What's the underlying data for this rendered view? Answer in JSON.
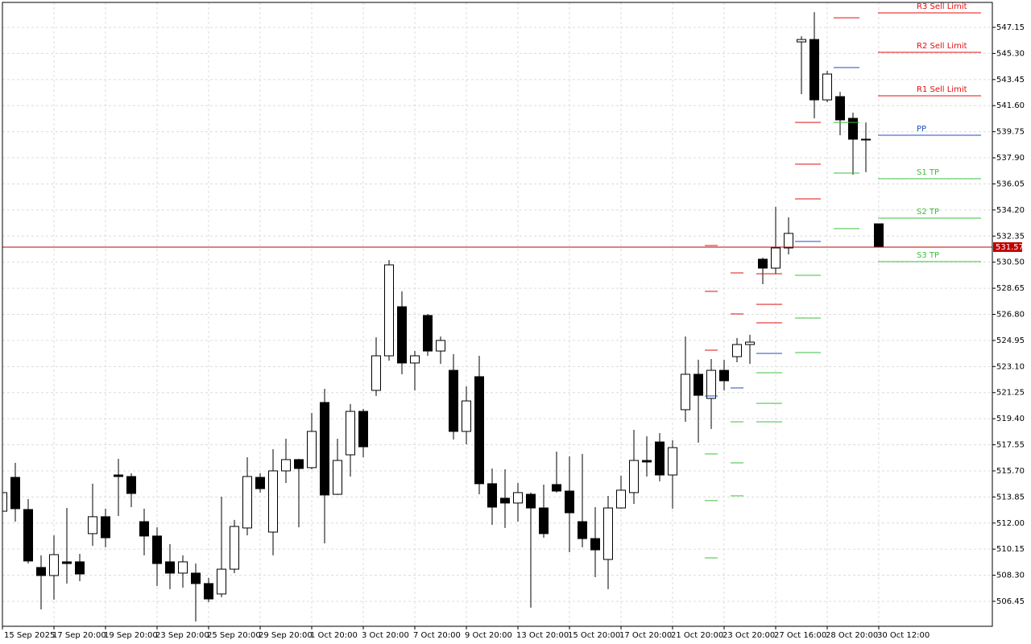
{
  "chart_data": {
    "type": "candlestick",
    "categories": [
      "15 Sep 2025",
      null,
      null,
      null,
      "17 Sep 20:00",
      null,
      null,
      null,
      "19 Sep 20:00",
      null,
      null,
      null,
      "23 Sep 20:00",
      null,
      null,
      null,
      "25 Sep 20:00",
      null,
      null,
      null,
      "29 Sep 20:00",
      null,
      null,
      null,
      "1 Oct 20:00",
      null,
      null,
      null,
      "3 Oct 20:00",
      null,
      null,
      null,
      "7 Oct 20:00",
      null,
      null,
      null,
      "9 Oct 20:00",
      null,
      null,
      null,
      "13 Oct 20:00",
      null,
      null,
      null,
      "15 Oct 20:00",
      null,
      null,
      null,
      "17 Oct 20:00",
      null,
      null,
      null,
      "21 Oct 20:00",
      null,
      null,
      null,
      "23 Oct 20:00",
      null,
      null,
      null,
      "27 Oct 16:00",
      null,
      null,
      null,
      "28 Oct 20:00",
      null,
      null,
      null,
      "30 Oct 12:00"
    ],
    "open": [
      512.84,
      515.24,
      512.96,
      508.85,
      508.28,
      509.25,
      509.25,
      511.25,
      512.45,
      515.41,
      515.3,
      512.1,
      511.08,
      509.25,
      508.45,
      508.45,
      507.71,
      506.97,
      508.73,
      511.65,
      515.24,
      511.36,
      515.7,
      516.5,
      515.93,
      520.55,
      514.04,
      516.84,
      519.92,
      521.41,
      523.86,
      527.34,
      523.35,
      526.72,
      524.2,
      522.83,
      518.5,
      522.38,
      514.79,
      513.76,
      513.42,
      514.04,
      513.07,
      514.73,
      514.27,
      512.1,
      510.9,
      509.42,
      513.07,
      514.16,
      516.44,
      517.75,
      515.41,
      520.04,
      522.55,
      520.84,
      522.83,
      523.8,
      524.66,
      530.71,
      530.08,
      531.51,
      546.12,
      546.29,
      542.01,
      542.24,
      540.7,
      539.22,
      533.22
    ],
    "high": [
      514.56,
      516.27,
      513.7,
      509.71,
      511.13,
      513.07,
      509.82,
      514.79,
      513.02,
      516.55,
      515.53,
      513.02,
      511.7,
      510.5,
      509.71,
      509.13,
      508.11,
      513.87,
      512.22,
      516.67,
      515.53,
      517.24,
      517.98,
      516.55,
      519.81,
      521.52,
      517.98,
      520.44,
      520.09,
      525.17,
      530.65,
      528.43,
      524.2,
      526.83,
      525.23,
      523.98,
      521.69,
      523.86,
      515.87,
      515.81,
      514.84,
      514.16,
      514.73,
      517.07,
      516.73,
      516.9,
      513.13,
      513.93,
      515.36,
      518.61,
      518.15,
      518.38,
      517.87,
      525.23,
      523.58,
      523.63,
      523.58,
      525.12,
      525.35,
      530.82,
      534.42,
      533.68,
      546.52,
      548.23,
      544.07,
      542.58,
      541.1,
      540.41,
      533.22
    ],
    "low": [
      512.56,
      512.1,
      509.13,
      505.88,
      506.57,
      507.71,
      507.88,
      510.39,
      510.28,
      512.5,
      513.13,
      509.71,
      507.54,
      507.31,
      507.42,
      505.02,
      506.39,
      506.74,
      508.45,
      511.13,
      514.16,
      509.71,
      514.84,
      511.7,
      515.81,
      510.56,
      513.99,
      515.3,
      516.67,
      521.01,
      523.52,
      522.55,
      521.41,
      523.86,
      523.29,
      517.92,
      517.58,
      514.04,
      511.87,
      511.65,
      512.1,
      506.0,
      510.96,
      514.16,
      509.93,
      510.28,
      508.16,
      507.31,
      513.02,
      513.36,
      515.3,
      514.96,
      513.02,
      519.18,
      517.7,
      518.67,
      521.41,
      523.4,
      523.29,
      528.94,
      529.68,
      531.05,
      542.41,
      540.7,
      541.84,
      539.5,
      536.7,
      536.88,
      531.57
    ],
    "close": [
      514.16,
      513.02,
      509.31,
      508.28,
      509.76,
      509.13,
      508.39,
      512.45,
      510.96,
      515.3,
      514.1,
      511.08,
      509.13,
      508.45,
      509.25,
      507.71,
      506.62,
      508.73,
      511.76,
      515.3,
      514.44,
      515.7,
      516.5,
      515.87,
      518.5,
      513.99,
      516.44,
      519.92,
      517.41,
      523.86,
      530.31,
      523.35,
      523.86,
      524.2,
      524.95,
      518.5,
      520.66,
      514.79,
      513.13,
      513.42,
      514.16,
      513.07,
      511.25,
      514.27,
      512.73,
      510.9,
      510.1,
      513.07,
      514.33,
      516.44,
      516.33,
      515.41,
      517.35,
      522.55,
      521.06,
      522.83,
      522.09,
      524.66,
      524.83,
      530.08,
      531.51,
      532.54,
      546.29,
      542.01,
      543.84,
      540.59,
      539.22,
      539.22,
      531.57
    ],
    "up_color": "#ffffff",
    "down_color": "#000000",
    "ylim": [
      504.68,
      548.92
    ],
    "yticks": [
      506.45,
      {
        "value": 508.3,
        "label": "508.30"
      },
      510.15,
      {
        "value": 512,
        "label": "512.00"
      },
      513.85,
      {
        "value": 515.7,
        "label": "515.70"
      },
      517.55,
      {
        "value": 519.4,
        "label": "519.40"
      },
      521.25,
      {
        "value": 523.1,
        "label": "523.10"
      },
      524.95,
      {
        "value": 526.8,
        "label": "526.80"
      },
      528.65,
      {
        "value": 530.5,
        "label": "530.50"
      },
      532.35,
      {
        "value": 534.2,
        "label": "534.20"
      },
      536.05,
      {
        "value": 537.9,
        "label": "537.90"
      },
      539.75,
      {
        "value": 541.6,
        "label": "541.60"
      },
      543.45,
      {
        "value": 545.3,
        "label": "545.30"
      },
      547.15
    ],
    "grid": true,
    "current_price": {
      "value": 531.57,
      "color": "#c00000"
    },
    "pivots": [
      {
        "name": "R3 Sell Limit",
        "color": "#e01010",
        "values": [
          null,
          null,
          null,
          null,
          null,
          null,
          null,
          null,
          null,
          null,
          null,
          null,
          null,
          null,
          null,
          null,
          null,
          null,
          null,
          null,
          null,
          null,
          null,
          null,
          null,
          null,
          null,
          null,
          null,
          null,
          null,
          null,
          null,
          null,
          null,
          null,
          null,
          null,
          null,
          null,
          null,
          null,
          null,
          null,
          null,
          null,
          null,
          null,
          null,
          null,
          null,
          null,
          null,
          null,
          null,
          531.68,
          null,
          529.74,
          null,
          529.68,
          529.68,
          null,
          540.41,
          540.41,
          null,
          null,
          null,
          null,
          548.18
        ]
      },
      {
        "name": "R2 Sell Limit",
        "color": "#e01010",
        "values": [
          null,
          null,
          null,
          null,
          null,
          null,
          null,
          null,
          null,
          null,
          null,
          null,
          null,
          null,
          null,
          null,
          null,
          null,
          null,
          null,
          null,
          null,
          null,
          null,
          null,
          null,
          null,
          null,
          null,
          null,
          null,
          null,
          null,
          null,
          null,
          null,
          null,
          null,
          null,
          null,
          null,
          null,
          null,
          null,
          null,
          null,
          null,
          null,
          null,
          null,
          null,
          null,
          null,
          null,
          null,
          528.43,
          null,
          526.83,
          null,
          527.51,
          527.51,
          null,
          537.45,
          537.45,
          null,
          null,
          null,
          null,
          545.38
        ]
      },
      {
        "name": "R1 Sell Limit",
        "color": "#e01010",
        "values": [
          null,
          null,
          null,
          null,
          null,
          null,
          null,
          null,
          null,
          null,
          null,
          null,
          null,
          null,
          null,
          null,
          null,
          null,
          null,
          null,
          null,
          null,
          null,
          null,
          null,
          null,
          null,
          null,
          null,
          null,
          null,
          null,
          null,
          null,
          null,
          null,
          null,
          null,
          null,
          null,
          null,
          null,
          null,
          null,
          null,
          null,
          null,
          null,
          null,
          null,
          null,
          null,
          null,
          null,
          null,
          524.26,
          null,
          null,
          null,
          526.2,
          526.2,
          null,
          534.99,
          534.99,
          null,
          547.83,
          547.83,
          null,
          542.3
        ]
      },
      {
        "name": "PP",
        "color": "#1f4fbf",
        "values": [
          null,
          null,
          null,
          null,
          null,
          null,
          null,
          null,
          null,
          null,
          null,
          null,
          null,
          null,
          null,
          null,
          null,
          null,
          null,
          null,
          null,
          null,
          null,
          null,
          null,
          null,
          null,
          null,
          null,
          null,
          null,
          null,
          null,
          null,
          null,
          null,
          null,
          null,
          null,
          null,
          null,
          null,
          null,
          null,
          null,
          null,
          null,
          null,
          null,
          null,
          null,
          null,
          null,
          null,
          null,
          521.01,
          null,
          521.58,
          null,
          524.03,
          524.03,
          null,
          531.97,
          531.97,
          null,
          544.3,
          544.3,
          null,
          539.5
        ]
      },
      {
        "name": "S1 TP",
        "color": "#3cbf3c",
        "values": [
          null,
          null,
          null,
          null,
          null,
          null,
          null,
          null,
          null,
          null,
          null,
          null,
          null,
          null,
          null,
          null,
          null,
          null,
          null,
          null,
          null,
          null,
          null,
          null,
          null,
          null,
          null,
          null,
          null,
          null,
          null,
          null,
          null,
          null,
          null,
          null,
          null,
          null,
          null,
          null,
          null,
          null,
          null,
          null,
          null,
          null,
          null,
          null,
          null,
          null,
          null,
          null,
          null,
          null,
          null,
          516.9,
          null,
          519.18,
          null,
          522.66,
          522.66,
          null,
          529.57,
          529.57,
          null,
          540.41,
          540.41,
          null,
          536.42
        ]
      },
      {
        "name": "S2 TP",
        "color": "#3cbf3c",
        "values": [
          null,
          null,
          null,
          null,
          null,
          null,
          null,
          null,
          null,
          null,
          null,
          null,
          null,
          null,
          null,
          null,
          null,
          null,
          null,
          null,
          null,
          null,
          null,
          null,
          null,
          null,
          null,
          null,
          null,
          null,
          null,
          null,
          null,
          null,
          null,
          null,
          null,
          null,
          null,
          null,
          null,
          null,
          null,
          null,
          null,
          null,
          null,
          null,
          null,
          null,
          null,
          null,
          null,
          null,
          null,
          513.59,
          null,
          516.27,
          null,
          520.49,
          520.49,
          null,
          526.54,
          526.54,
          null,
          536.82,
          536.82,
          null,
          533.62
        ]
      },
      {
        "name": "S3 TP",
        "color": "#3cbf3c",
        "values": [
          null,
          null,
          null,
          null,
          null,
          null,
          null,
          null,
          null,
          null,
          null,
          null,
          null,
          null,
          null,
          null,
          null,
          null,
          null,
          null,
          null,
          null,
          null,
          null,
          null,
          null,
          null,
          null,
          null,
          null,
          null,
          null,
          null,
          null,
          null,
          null,
          null,
          null,
          null,
          null,
          null,
          null,
          null,
          null,
          null,
          null,
          null,
          null,
          null,
          null,
          null,
          null,
          null,
          null,
          null,
          509.53,
          null,
          513.93,
          null,
          519.18,
          519.18,
          null,
          524.09,
          524.09,
          null,
          532.88,
          532.88,
          null,
          530.54
        ]
      }
    ]
  }
}
